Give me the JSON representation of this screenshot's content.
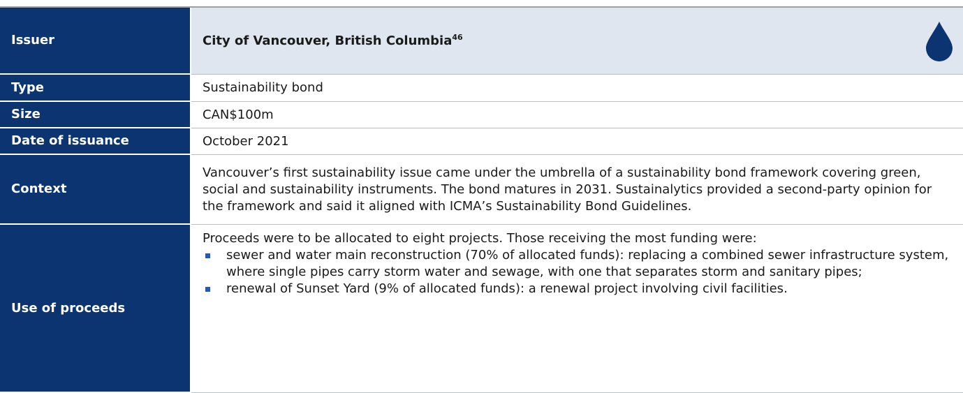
{
  "header": {
    "label": "Issuer",
    "value": "City of Vancouver, British Columbia",
    "note": "46"
  },
  "rows": [
    {
      "label": "Type",
      "value": "Sustainability bond"
    },
    {
      "label": "Size",
      "value": "CAN$100m"
    },
    {
      "label": "Date of issuance",
      "value": "October 2021"
    },
    {
      "label": "Context",
      "value": "Vancouver’s first sustainability issue came under the umbrella of a sustainability bond framework covering green, social and sustainability instruments. The bond matures in 2031. Sustainalytics provided a second-party opinion for the framework and said it aligned with ICMA’s Sustainability Bond Guidelines."
    },
    {
      "label": "Use of proceeds",
      "value": "Proceeds were to be allocated to eight projects. Those receiving the most funding were:",
      "items": [
        "sewer and water main reconstruction (70% of allocated funds): replacing a combined sewer infrastructure system, where single pipes carry storm water and sewage, with one that separates storm and sanitary pipes;",
        "renewal of Sunset Yard (9% of allocated funds): a renewal project involving civil facilities."
      ]
    }
  ]
}
